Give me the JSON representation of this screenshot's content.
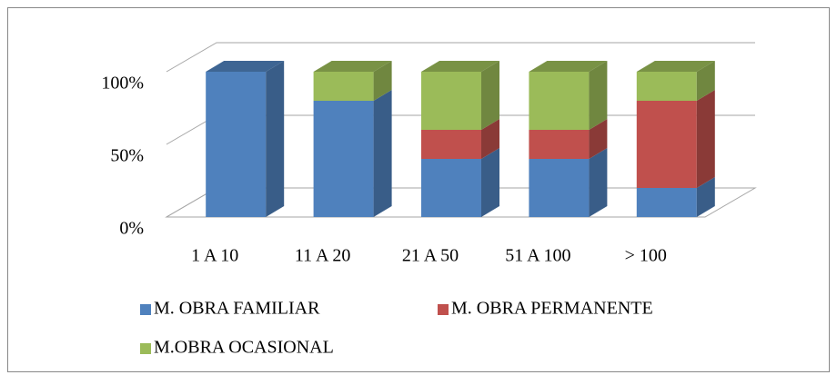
{
  "chart_data": {
    "type": "bar",
    "stacked": true,
    "categories": [
      "1 A 10",
      "11 A 20",
      "21 A 50",
      "51 A 100",
      "> 100"
    ],
    "series": [
      {
        "name": "M. OBRA FAMILIAR",
        "color": "#4f81bd",
        "values": [
          100,
          80,
          40,
          40,
          20
        ]
      },
      {
        "name": "M. OBRA PERMANENTE",
        "color": "#c0504d",
        "values": [
          0,
          0,
          20,
          20,
          60
        ]
      },
      {
        "name": "M.OBRA OCASIONAL",
        "color": "#9bbb59",
        "values": [
          0,
          20,
          40,
          40,
          20
        ]
      }
    ],
    "ylim": [
      0,
      100
    ],
    "yticks": [
      {
        "value": 0,
        "label": "0%"
      },
      {
        "value": 50,
        "label": "50%"
      },
      {
        "value": 100,
        "label": "100%"
      }
    ],
    "grid": true
  }
}
